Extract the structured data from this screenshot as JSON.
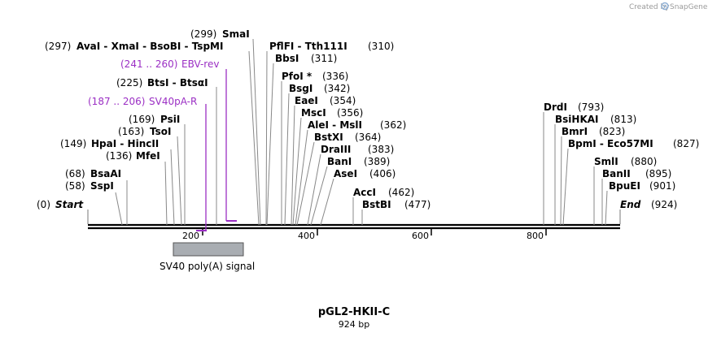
{
  "watermark": {
    "text": "Created by",
    "brand": "SnapGene",
    "icon": "snapgene-logo-icon"
  },
  "map": {
    "title": "pGL2-HKII-C",
    "length_label": "924 bp",
    "length": 924,
    "start_label": "Start",
    "start_pos": "(0)",
    "end_label": "End",
    "end_pos": "(924)",
    "ticks": [
      "200",
      "400",
      "600",
      "800"
    ]
  },
  "features": [
    {
      "name": "SV40 poly(A) signal",
      "start": 187,
      "end": 306,
      "color": "#a9adb2"
    }
  ],
  "primers": [
    {
      "name": "SV40pA-R",
      "range": "(187 .. 206)",
      "start": 187,
      "end": 206,
      "direction": "reverse"
    },
    {
      "name": "EBV-rev",
      "range": "(241 .. 260)",
      "start": 241,
      "end": 260,
      "direction": "reverse"
    }
  ],
  "sites": [
    {
      "label": "SspI",
      "pos": "(58)"
    },
    {
      "label": "BsaAI",
      "pos": "(68)"
    },
    {
      "label": "MfeI",
      "pos": "(136)"
    },
    {
      "label": "HpaI  -  HincII",
      "pos": "(149)"
    },
    {
      "label": "TsoI",
      "pos": "(163)"
    },
    {
      "label": "PsiI",
      "pos": "(169)"
    },
    {
      "label": "BtsI  -  BtsαI",
      "pos": "(225)"
    },
    {
      "label": "AvaI  -  XmaI  -  BsoBI  -  TspMI",
      "pos": "(297)"
    },
    {
      "label": "SmaI",
      "pos": "(299)"
    },
    {
      "label": "PflFI  -  Tth111I",
      "pos": "(310)"
    },
    {
      "label": "BbsI",
      "pos": "(311)"
    },
    {
      "label": "PfoI *",
      "pos": "(336)"
    },
    {
      "label": "BsgI",
      "pos": "(342)"
    },
    {
      "label": "EaeI",
      "pos": "(354)"
    },
    {
      "label": "MscI",
      "pos": "(356)"
    },
    {
      "label": "AleI  -  MslI",
      "pos": "(362)"
    },
    {
      "label": "BstXI",
      "pos": "(364)"
    },
    {
      "label": "DraIII",
      "pos": "(383)"
    },
    {
      "label": "BanI",
      "pos": "(389)"
    },
    {
      "label": "AseI",
      "pos": "(406)"
    },
    {
      "label": "AccI",
      "pos": "(462)"
    },
    {
      "label": "BstBI",
      "pos": "(477)"
    },
    {
      "label": "DrdI",
      "pos": "(793)"
    },
    {
      "label": "BsiHKAI",
      "pos": "(813)"
    },
    {
      "label": "BmrI",
      "pos": "(823)"
    },
    {
      "label": "BpmI  -  Eco57MI",
      "pos": "(827)"
    },
    {
      "label": "SmlI",
      "pos": "(880)"
    },
    {
      "label": "BanII",
      "pos": "(895)"
    },
    {
      "label": "BpuEI",
      "pos": "(901)"
    }
  ]
}
